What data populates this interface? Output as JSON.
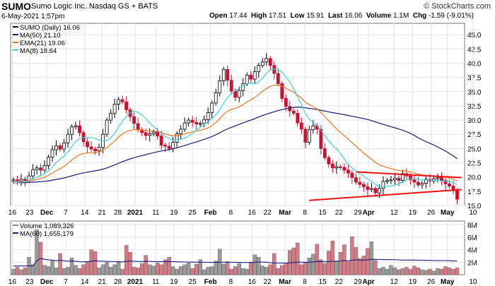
{
  "header": {
    "symbol": "SUMO",
    "company": "Sumo Logic Inc.  Nasdaq GS + BATS",
    "date_time": "6-May-2021 1:57pm",
    "copyright": "© StockCharts.com",
    "quote": {
      "open_label": "Open",
      "open": "17.44",
      "high_label": "High",
      "high": "17.51",
      "low_label": "Low",
      "low": "15.91",
      "last_label": "Last",
      "last": "16.06",
      "volume_label": "Volume",
      "volume": "1.1M",
      "chg_label": "Chg",
      "chg": "-1.59 (-9.01%)"
    }
  },
  "colors": {
    "up": "#ffffff",
    "down": "#cc1030",
    "ma50": "#1a1a80",
    "ema21": "#f07820",
    "ma8": "#40d0e0",
    "vol_up": "#9a9a9a",
    "vol_down": "#d67a86",
    "trend": "#ee1111",
    "grid": "#e4e4e4"
  },
  "chart_data": [
    {
      "type": "line",
      "panel": "price",
      "legend": [
        "SUMO (Daily) 16.06",
        "MA(50) 21.10",
        "EMA(21) 19.06",
        "MA(8) 18.64"
      ],
      "ylim": [
        15.0,
        47.0
      ],
      "y_ticks": [
        "15.0",
        "17.5",
        "20.0",
        "22.5",
        "25.0",
        "27.5",
        "30.0",
        "32.5",
        "35.0",
        "37.5",
        "40.0",
        "42.5",
        "45.0"
      ],
      "x_ticks": [
        "16",
        "23",
        "Dec",
        "7",
        "14",
        "21",
        "28",
        "2021",
        "11",
        "19",
        "25",
        "Feb",
        "8",
        "16",
        "22",
        "Mar",
        "8",
        "15",
        "22",
        "29",
        "Apr",
        "12",
        "19",
        "26",
        "May",
        "10"
      ],
      "candles": [
        19.5,
        19.3,
        19.6,
        19.4,
        20.2,
        21.3,
        21.6,
        21.2,
        22.0,
        23.5,
        24.8,
        25.5,
        24.9,
        26.0,
        27.5,
        28.8,
        29.0,
        27.8,
        26.2,
        25.3,
        24.9,
        24.6,
        25.2,
        27.5,
        30.0,
        31.2,
        32.8,
        33.6,
        33.2,
        31.8,
        30.6,
        29.4,
        28.3,
        27.8,
        27.3,
        27.6,
        27.9,
        27.2,
        25.6,
        25.4,
        25.0,
        26.1,
        27.6,
        28.4,
        29.5,
        30.0,
        29.6,
        29.3,
        29.4,
        30.1,
        31.3,
        33.0,
        34.8,
        36.9,
        38.9,
        37.0,
        35.1,
        34.0,
        35.2,
        36.4,
        37.9,
        37.2,
        38.5,
        39.6,
        40.2,
        40.8,
        39.6,
        38.2,
        36.4,
        33.8,
        32.4,
        31.6,
        31.2,
        29.5,
        28.4,
        26.1,
        28.3,
        29.0,
        28.4,
        25.0,
        23.4,
        22.3,
        21.6,
        21.8,
        21.7,
        21.2,
        20.7,
        19.9,
        19.1,
        18.7,
        18.3,
        17.8,
        18.0,
        17.2,
        18.0,
        19.2,
        19.4,
        19.5,
        19.8,
        19.4,
        20.6,
        20.2,
        19.5,
        19.1,
        18.6,
        18.9,
        19.6,
        19.3,
        19.7,
        19.9,
        19.4,
        18.8,
        18.4,
        17.6,
        16.1
      ]
    },
    {
      "type": "bar",
      "panel": "volume",
      "legend": [
        "Volume 1,089,326",
        "MA(60) 1,655,179"
      ],
      "ylim": [
        0,
        8.6
      ],
      "y_ticks": [
        "2M",
        "4M",
        "6M",
        "8M"
      ],
      "values_m": [
        0.9,
        1.2,
        0.8,
        1.1,
        2.8,
        1.6,
        7.2,
        5.2,
        1.5,
        1.3,
        2.2,
        1.1,
        3.4,
        1.0,
        1.2,
        2.7,
        1.5,
        1.0,
        1.6,
        2.1,
        4.0,
        3.7,
        1.1,
        1.6,
        2.0,
        1.2,
        1.6,
        2.0,
        0.9,
        4.7,
        3.6,
        1.2,
        1.1,
        1.8,
        3.1,
        1.6,
        1.4,
        1.9,
        1.6,
        2.4,
        2.8,
        1.3,
        0.9,
        1.3,
        1.6,
        1.9,
        1.0,
        1.7,
        2.4,
        0.8,
        1.2,
        1.3,
        2.2,
        4.1,
        1.7,
        2.1,
        0.9,
        1.3,
        1.8,
        1.0,
        0.9,
        1.9,
        3.2,
        2.8,
        1.4,
        1.2,
        1.6,
        3.4,
        1.0,
        1.5,
        1.9,
        3.9,
        4.3,
        5.1,
        1.6,
        2.0,
        2.7,
        3.3,
        4.9,
        2.4,
        1.8,
        3.8,
        5.4,
        2.2,
        3.6,
        4.8,
        2.1,
        6.1,
        4.4,
        2.6,
        3.0,
        4.2,
        5.3,
        2.3,
        1.0,
        1.2,
        0.9,
        1.5,
        1.1,
        0.8,
        1.0,
        1.2,
        0.9,
        1.4,
        1.1,
        0.8,
        0.7,
        0.9,
        0.6,
        1.0,
        0.9,
        1.3,
        1.1,
        0.9,
        1.1
      ]
    }
  ]
}
